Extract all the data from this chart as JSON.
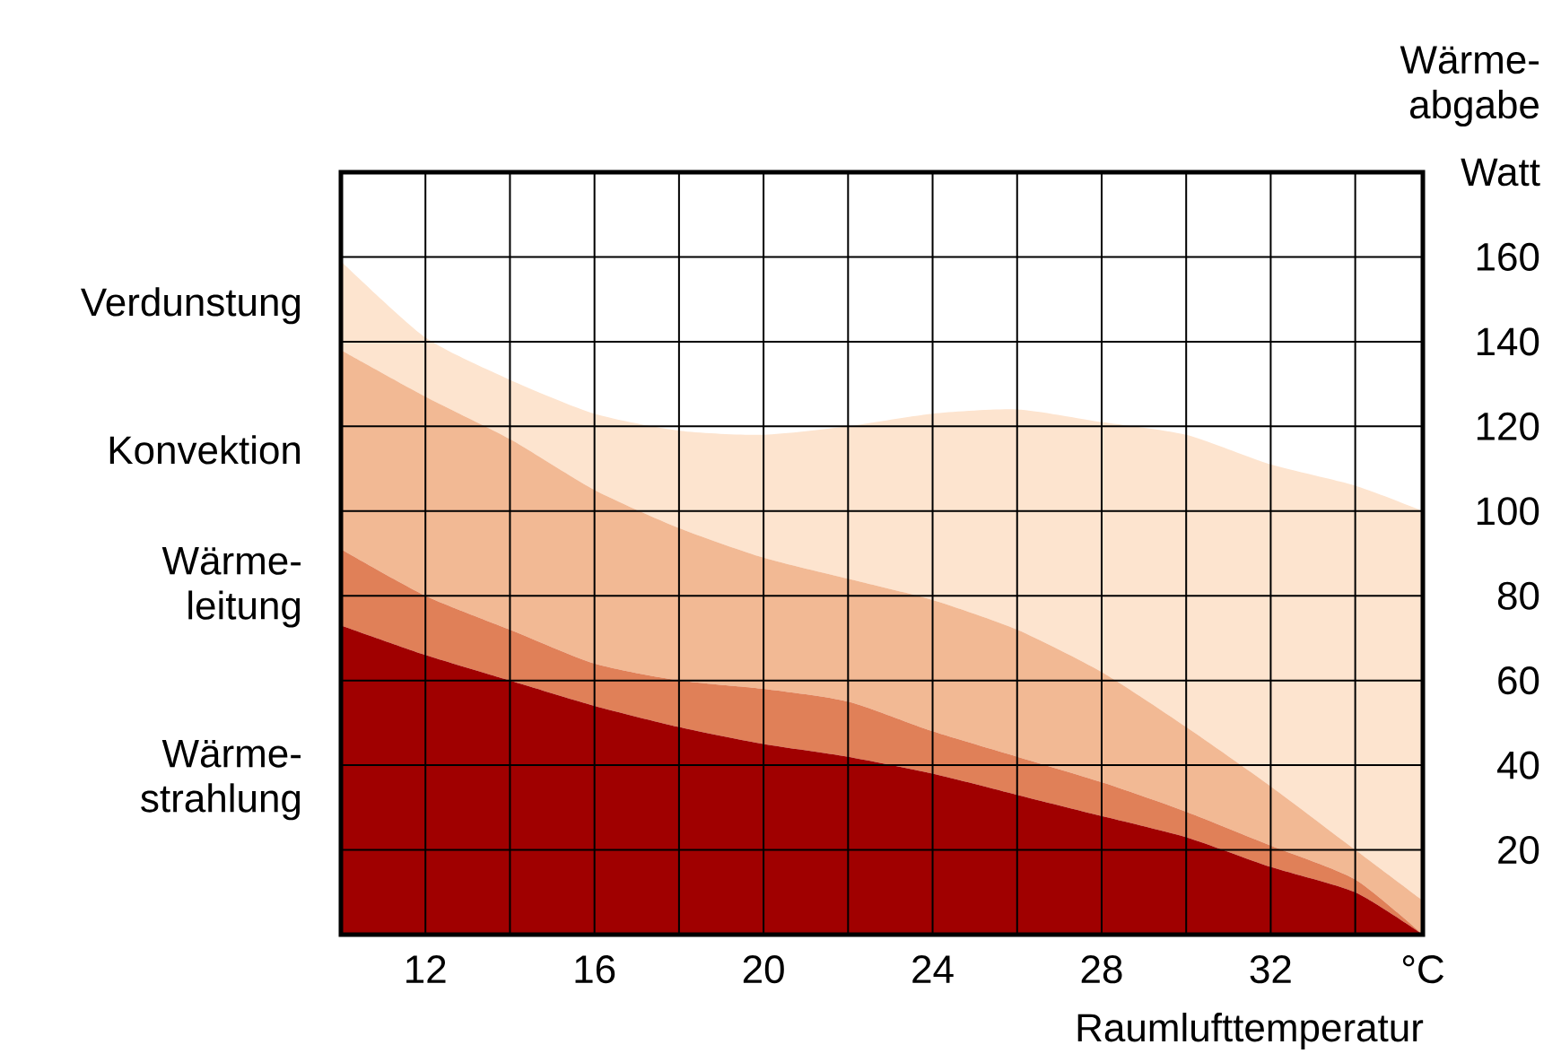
{
  "chart_data": {
    "type": "area",
    "stacked": true,
    "xlabel": "Raumlufttemperatur",
    "ylabel": "Wärme-abgabe",
    "x": [
      10,
      12,
      14,
      16,
      18,
      20,
      22,
      24,
      26,
      28,
      30,
      32,
      34,
      35.6
    ],
    "xlim": [
      10,
      35.6
    ],
    "xticks": [
      {
        "value": 12,
        "label": "12"
      },
      {
        "value": 14,
        "label": null
      },
      {
        "value": 16,
        "label": "16"
      },
      {
        "value": 18,
        "label": null
      },
      {
        "value": 20,
        "label": "20"
      },
      {
        "value": 22,
        "label": null
      },
      {
        "value": 24,
        "label": "24"
      },
      {
        "value": 26,
        "label": null
      },
      {
        "value": 28,
        "label": "28"
      },
      {
        "value": 30,
        "label": null
      },
      {
        "value": 32,
        "label": "32"
      },
      {
        "value": 34,
        "label": null
      },
      {
        "value": 35.6,
        "label": "°C"
      }
    ],
    "ylim": [
      0,
      180
    ],
    "yticks": [
      20,
      40,
      60,
      80,
      100,
      120,
      140,
      160,
      {
        "value": 180,
        "label": "Watt"
      }
    ],
    "grid": true,
    "series": [
      {
        "name": "Wärme-strahlung",
        "color": "#a00000",
        "values": [
          73,
          66,
          60,
          54,
          49,
          45,
          42,
          38,
          33,
          28,
          23,
          16,
          10,
          0
        ]
      },
      {
        "name": "Wärme-leitung",
        "color": "#e08058",
        "values": [
          18,
          14,
          12,
          10,
          11,
          13,
          13,
          10,
          9,
          8,
          6,
          5,
          3,
          0
        ]
      },
      {
        "name": "Konvektion",
        "color": "#f2b994",
        "values": [
          47,
          47,
          45,
          41,
          36,
          31,
          29,
          31,
          30,
          26,
          20,
          14,
          7,
          8
        ]
      },
      {
        "name": "Verdunstung",
        "color": "#fde4cf",
        "values": [
          21,
          14,
          14,
          18,
          23,
          29,
          36,
          44,
          52,
          59,
          69,
          76,
          86,
          92
        ]
      }
    ]
  }
}
